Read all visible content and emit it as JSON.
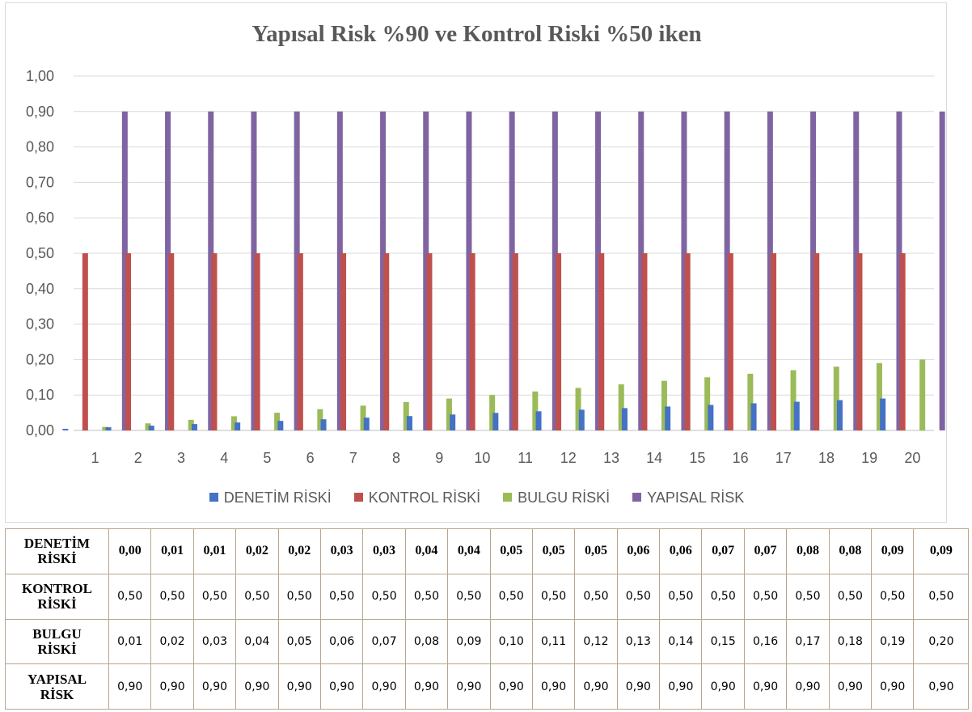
{
  "chart_data": {
    "type": "bar",
    "title": "Yapısal Risk %90 ve Kontrol Riski %50 iken",
    "categories": [
      "1",
      "2",
      "3",
      "4",
      "5",
      "6",
      "7",
      "8",
      "9",
      "10",
      "11",
      "12",
      "13",
      "14",
      "15",
      "16",
      "17",
      "18",
      "19",
      "20"
    ],
    "ylim": [
      0,
      1
    ],
    "yticks": [
      "0,00",
      "0,10",
      "0,20",
      "0,30",
      "0,40",
      "0,50",
      "0,60",
      "0,70",
      "0,80",
      "0,90",
      "1,00"
    ],
    "grid": true,
    "legend_position": "bottom",
    "series": [
      {
        "name": "DENETİM RİSKİ",
        "color": "#4472c4",
        "values": [
          0.0045,
          0.009,
          0.0135,
          0.018,
          0.0225,
          0.027,
          0.0315,
          0.036,
          0.0405,
          0.045,
          0.0495,
          0.054,
          0.0585,
          0.063,
          0.0675,
          0.072,
          0.0765,
          0.081,
          0.0855,
          0.09
        ]
      },
      {
        "name": "KONTROL RİSKİ",
        "color": "#c0504d",
        "values": [
          0.5,
          0.5,
          0.5,
          0.5,
          0.5,
          0.5,
          0.5,
          0.5,
          0.5,
          0.5,
          0.5,
          0.5,
          0.5,
          0.5,
          0.5,
          0.5,
          0.5,
          0.5,
          0.5,
          0.5
        ]
      },
      {
        "name": "BULGU RİSKİ",
        "color": "#9bbb59",
        "values": [
          0.01,
          0.02,
          0.03,
          0.04,
          0.05,
          0.06,
          0.07,
          0.08,
          0.09,
          0.1,
          0.11,
          0.12,
          0.13,
          0.14,
          0.15,
          0.16,
          0.17,
          0.18,
          0.19,
          0.2
        ]
      },
      {
        "name": "YAPISAL RİSK",
        "color": "#8064a2",
        "values": [
          0.9,
          0.9,
          0.9,
          0.9,
          0.9,
          0.9,
          0.9,
          0.9,
          0.9,
          0.9,
          0.9,
          0.9,
          0.9,
          0.9,
          0.9,
          0.9,
          0.9,
          0.9,
          0.9,
          0.9
        ]
      }
    ]
  },
  "table": {
    "rows": [
      {
        "header_line1": "DENETİM",
        "header_line2": "RİSKİ",
        "bold": true,
        "cells": [
          "0,00",
          "0,01",
          "0,01",
          "0,02",
          "0,02",
          "0,03",
          "0,03",
          "0,04",
          "0,04",
          "0,05",
          "0,05",
          "0,05",
          "0,06",
          "0,06",
          "0,07",
          "0,07",
          "0,08",
          "0,08",
          "0,09",
          "0,09"
        ]
      },
      {
        "header_line1": "KONTROL",
        "header_line2": "RİSKİ",
        "bold": false,
        "cells": [
          "0,50",
          "0,50",
          "0,50",
          "0,50",
          "0,50",
          "0,50",
          "0,50",
          "0,50",
          "0,50",
          "0,50",
          "0,50",
          "0,50",
          "0,50",
          "0,50",
          "0,50",
          "0,50",
          "0,50",
          "0,50",
          "0,50",
          "0,50"
        ]
      },
      {
        "header_line1": "BULGU",
        "header_line2": "RİSKİ",
        "bold": false,
        "cells": [
          "0,01",
          "0,02",
          "0,03",
          "0,04",
          "0,05",
          "0,06",
          "0,07",
          "0,08",
          "0,09",
          "0,10",
          "0,11",
          "0,12",
          "0,13",
          "0,14",
          "0,15",
          "0,16",
          "0,17",
          "0,18",
          "0,19",
          "0,20"
        ]
      },
      {
        "header_line1": "YAPISAL",
        "header_line2": "RİSK",
        "bold": false,
        "cells": [
          "0,90",
          "0,90",
          "0,90",
          "0,90",
          "0,90",
          "0,90",
          "0,90",
          "0,90",
          "0,90",
          "0,90",
          "0,90",
          "0,90",
          "0,90",
          "0,90",
          "0,90",
          "0,90",
          "0,90",
          "0,90",
          "0,90",
          "0,90"
        ]
      }
    ]
  }
}
